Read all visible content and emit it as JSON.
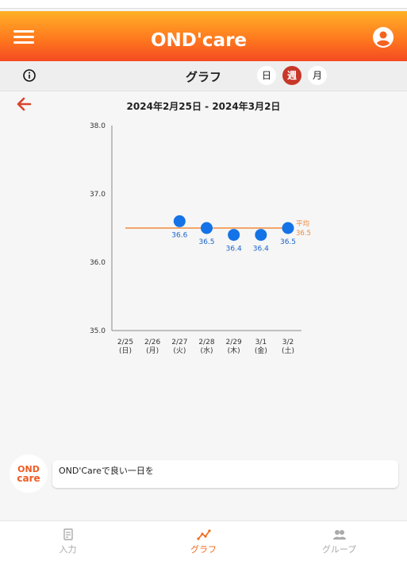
{
  "app": {
    "logo_text": "OND'care"
  },
  "subbar": {
    "title": "グラフ",
    "periods": [
      {
        "label": "日",
        "active": false
      },
      {
        "label": "週",
        "active": true
      },
      {
        "label": "月",
        "active": false
      }
    ]
  },
  "date_range": "2024年2月25日 - 2024年3月2日",
  "chart_data": {
    "type": "scatter",
    "categories": [
      "2/25\n(日)",
      "2/26\n(月)",
      "2/27\n(火)",
      "2/28\n(水)",
      "2/29\n(木)",
      "3/1\n(金)",
      "3/2\n(土)"
    ],
    "values": [
      null,
      null,
      36.6,
      36.5,
      36.4,
      36.4,
      36.5
    ],
    "data_labels": [
      "",
      "",
      "36.6",
      "36.5",
      "36.4",
      "36.4",
      "36.5"
    ],
    "y_ticks": [
      "38.0",
      "37.0",
      "36.0",
      "35.0"
    ],
    "ylim": [
      35.0,
      38.0
    ],
    "average": {
      "label": "平均",
      "value": 36.5,
      "value_label": "36.5"
    },
    "colors": {
      "point": "#1473e6",
      "label": "#1a63c9",
      "average": "#f08a3c",
      "axis": "#888888"
    },
    "grid": false
  },
  "chat": {
    "message": "OND'Careで良い一日を"
  },
  "bottom_nav": [
    {
      "label": "入力",
      "icon": "edit-icon",
      "active": false
    },
    {
      "label": "グラフ",
      "icon": "graph-icon",
      "active": true
    },
    {
      "label": "グループ",
      "icon": "group-icon",
      "active": false
    }
  ]
}
